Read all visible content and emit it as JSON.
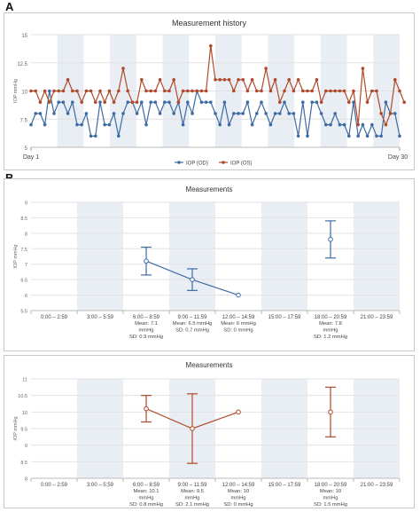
{
  "panels": [
    {
      "letter": "A",
      "chart_data": {
        "type": "line",
        "title": "Measurement history",
        "ylabel": "IOP mmHg",
        "ylim": [
          5,
          15
        ],
        "yticks": [
          "5",
          "7.5",
          "10",
          "12.5",
          "15"
        ],
        "x_start_label": "Day 1",
        "x_end_label": "Day 30",
        "shaded_bands": "alternating",
        "series": [
          {
            "name": "IOP (OD)",
            "color": "#3d6ba3",
            "values": [
              7,
              8,
              8,
              7,
              10,
              8,
              9,
              9,
              8,
              9,
              7,
              7,
              8,
              6,
              6,
              9,
              7,
              7,
              8,
              6,
              8,
              9,
              9,
              8,
              9,
              7,
              9,
              9,
              8,
              9,
              9,
              8,
              9,
              7,
              9,
              8,
              10,
              9,
              9,
              9,
              8,
              7,
              9,
              7,
              8,
              8,
              8,
              9,
              7,
              8,
              9,
              8,
              7,
              8,
              8,
              9,
              8,
              8,
              6,
              9,
              6,
              9,
              9,
              8,
              7,
              7,
              8,
              7,
              7,
              6,
              9,
              6,
              7,
              6,
              7,
              6,
              6,
              9,
              8,
              8,
              6
            ]
          },
          {
            "name": "IOP (OS)",
            "color": "#b14a2a",
            "values": [
              10,
              10,
              9,
              10,
              9,
              10,
              10,
              10,
              11,
              10,
              10,
              9,
              10,
              10,
              9,
              10,
              9,
              10,
              9,
              10,
              12,
              10,
              9,
              9,
              11,
              10,
              10,
              10,
              11,
              10,
              10,
              11,
              9,
              10,
              10,
              10,
              10,
              10,
              10,
              14,
              11,
              11,
              11,
              11,
              10,
              11,
              11,
              10,
              11,
              10,
              10,
              12,
              10,
              11,
              9,
              10,
              11,
              10,
              11,
              10,
              10,
              10,
              11,
              9,
              10,
              10,
              10,
              10,
              10,
              9,
              10,
              7,
              12,
              9,
              10,
              10,
              8,
              7,
              8,
              11,
              10,
              9
            ]
          }
        ]
      }
    },
    {
      "letter": "B",
      "chart_data": {
        "type": "scatter",
        "title": "Measurements",
        "ylabel": "IOP mmHg",
        "ylim": [
          5.5,
          9
        ],
        "yticks": [
          "5.5",
          "6",
          "6.5",
          "7",
          "7.5",
          "8",
          "8.5",
          "9"
        ],
        "color": "#3d6ba3",
        "categories": [
          "0:00 – 2:59",
          "3:00 – 5:59",
          "6:00 – 8:59",
          "9:00 – 11:59",
          "12:00 – 14:59",
          "15:00 – 17:59",
          "18:00 – 20:59",
          "21:00 – 23:59"
        ],
        "points": [
          {
            "slot": 2,
            "mean": 7.1,
            "sd": 0.45,
            "connected": true,
            "stats": [
              "Mean: 7.1",
              "mmHg",
              "SD: 0.9 mmHg"
            ]
          },
          {
            "slot": 3,
            "mean": 6.5,
            "sd": 0.35,
            "connected": true,
            "stats": [
              "Mean: 6.5 mmHg",
              "SD: 0.7 mmHg"
            ]
          },
          {
            "slot": 4,
            "mean": 6.0,
            "sd": 0,
            "connected": true,
            "stats": [
              "Mean: 6 mmHg",
              "SD: 0 mmHg"
            ]
          },
          {
            "slot": 6,
            "mean": 7.8,
            "sd": 0.6,
            "connected": false,
            "stats": [
              "Mean: 7.8",
              "mmHg",
              "SD: 1.2 mmHg"
            ]
          }
        ]
      }
    },
    {
      "letter": "C",
      "chart_data": {
        "type": "scatter",
        "title": "Measurements",
        "ylabel": "IOP mmHg",
        "ylim": [
          8,
          11
        ],
        "yticks": [
          "8",
          "8.5",
          "9",
          "9.5",
          "10",
          "10.5",
          "11"
        ],
        "color": "#b14a2a",
        "categories": [
          "0:00 – 2:59",
          "3:00 – 5:59",
          "6:00 – 8:59",
          "9:00 – 11:59",
          "12:00 – 14:59",
          "15:00 – 17:59",
          "18:00 – 20:59",
          "21:00 – 23:59"
        ],
        "points": [
          {
            "slot": 2,
            "mean": 10.1,
            "sd": 0.4,
            "connected": true,
            "stats": [
              "Mean: 10.1",
              "mmHg",
              "SD: 0.8 mmHg"
            ]
          },
          {
            "slot": 3,
            "mean": 9.5,
            "sd": 1.05,
            "connected": true,
            "stats": [
              "Mean: 9.5",
              "mmHg",
              "SD: 2.1 mmHg"
            ]
          },
          {
            "slot": 4,
            "mean": 10.0,
            "sd": 0,
            "connected": true,
            "stats": [
              "Mean: 10",
              "mmHg",
              "SD: 0 mmHg"
            ]
          },
          {
            "slot": 6,
            "mean": 10.0,
            "sd": 0.75,
            "connected": false,
            "stats": [
              "Mean: 10",
              "mmHg",
              "SD: 1.5 mmHg"
            ]
          }
        ]
      }
    }
  ]
}
